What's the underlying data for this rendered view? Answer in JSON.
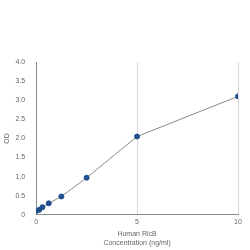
{
  "chart_data": {
    "type": "line",
    "x_label": [
      "Human RicB",
      "Concentration (ng/ml)"
    ],
    "y_label": "OD",
    "x": [
      0,
      0.156,
      0.312,
      0.625,
      1.25,
      2.5,
      5,
      10
    ],
    "values": [
      0.1,
      0.13,
      0.2,
      0.3,
      0.48,
      0.97,
      2.05,
      3.1
    ],
    "color": "#1f4e8c",
    "line_color": "#8a8a8a",
    "marker": "circle",
    "xlim": [
      0,
      10
    ],
    "xticks": [
      0,
      5,
      10
    ],
    "ylim": [
      0,
      4
    ],
    "yticks": [
      0,
      0.5,
      1,
      1.5,
      2,
      2.5,
      3,
      3.5,
      4
    ],
    "grid": true
  }
}
